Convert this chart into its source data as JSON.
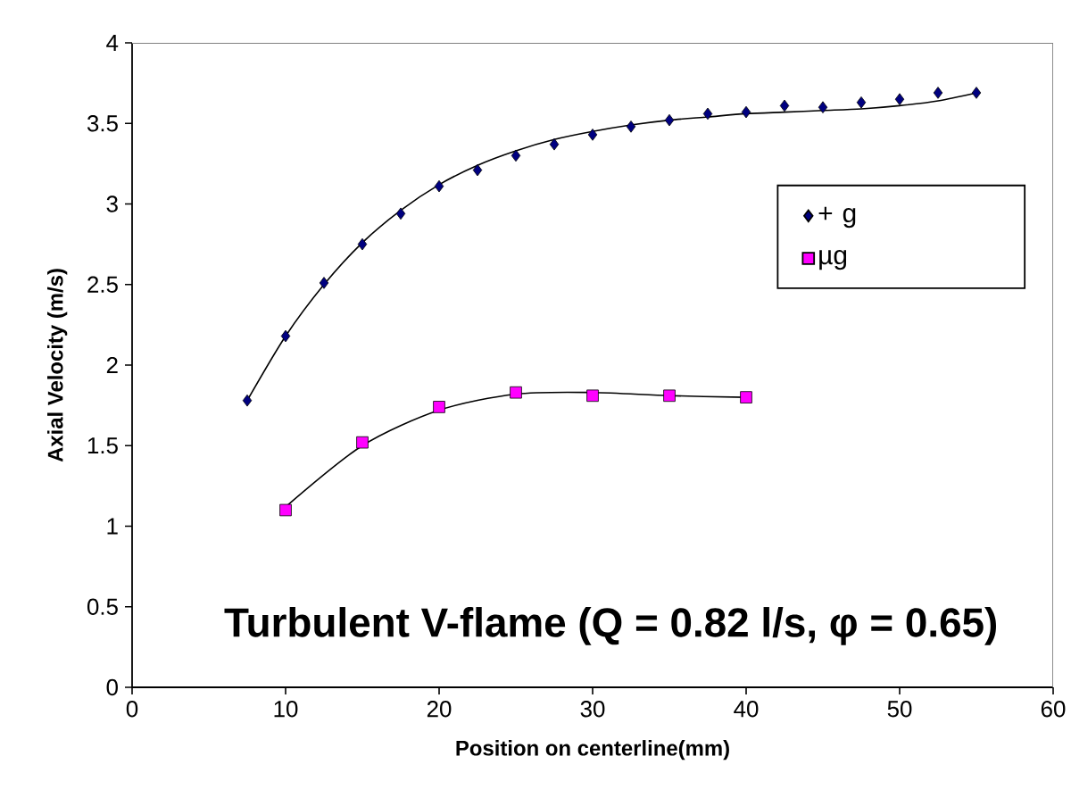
{
  "chart_data": {
    "type": "scatter",
    "xlabel": "Position on centerline(mm)",
    "ylabel": "Axial Velocity (m/s)",
    "xlim": [
      0,
      60
    ],
    "xticks": [
      0,
      10,
      20,
      30,
      40,
      50,
      60
    ],
    "ylim": [
      0,
      4
    ],
    "yticks": [
      0,
      0.5,
      1,
      1.5,
      2,
      2.5,
      3,
      3.5,
      4
    ],
    "grid": false,
    "legend": "top right",
    "annotations": [
      "**Turbulent V-flame (Q = 0.82 l/s, φ = 0.65)**"
    ],
    "series": [
      {
        "name": "+ g",
        "color": "#000080",
        "marker": "diamond",
        "x": [
          7.5,
          10,
          12.5,
          15,
          17.5,
          20,
          22.5,
          25,
          27.5,
          30,
          32.5,
          35,
          37.5,
          40,
          42.5,
          45,
          47.5,
          50,
          52.5,
          55
        ],
        "values": [
          1.78,
          2.18,
          2.51,
          2.75,
          2.94,
          3.11,
          3.21,
          3.3,
          3.37,
          3.43,
          3.48,
          3.52,
          3.56,
          3.57,
          3.61,
          3.6,
          3.63,
          3.65,
          3.69,
          3.69
        ]
      },
      {
        "name": "µg",
        "color": "#ff00ff",
        "marker": "square",
        "x": [
          10,
          15,
          20,
          25,
          30,
          35,
          40
        ],
        "values": [
          1.1,
          1.52,
          1.74,
          1.83,
          1.81,
          1.81,
          1.8
        ]
      },
      {
        "type": "line",
        "color": "#000000",
        "marker": "none",
        "line_style": "solid",
        "x": [
          7.5,
          10,
          12.5,
          15,
          17.5,
          20,
          22.5,
          25,
          27.5,
          30,
          32.5,
          35,
          37.5,
          40,
          42.5,
          45,
          47.5,
          50,
          52.5,
          55
        ],
        "values": [
          1.78,
          2.18,
          2.5,
          2.76,
          2.96,
          3.12,
          3.24,
          3.33,
          3.4,
          3.45,
          3.49,
          3.52,
          3.54,
          3.56,
          3.57,
          3.58,
          3.59,
          3.61,
          3.64,
          3.69
        ]
      },
      {
        "type": "line",
        "color": "#000000",
        "marker": "none",
        "line_style": "solid",
        "x": [
          10,
          15,
          20,
          25,
          30,
          35,
          40
        ],
        "values": [
          1.12,
          1.5,
          1.72,
          1.82,
          1.83,
          1.81,
          1.8
        ]
      }
    ]
  }
}
